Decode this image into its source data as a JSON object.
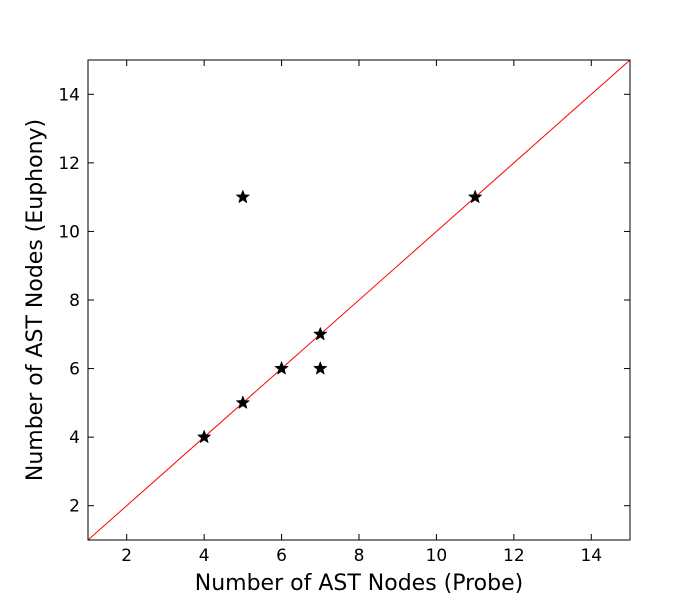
{
  "chart_data": {
    "type": "scatter",
    "xlabel": "Number of AST Nodes (Probe)",
    "ylabel": "Number of AST Nodes (Euphony)",
    "xlim": [
      1,
      15
    ],
    "ylim": [
      1,
      15
    ],
    "x_ticks": [
      2,
      4,
      6,
      8,
      10,
      12,
      14
    ],
    "y_ticks": [
      2,
      4,
      6,
      8,
      10,
      12,
      14
    ],
    "grid": false,
    "legend": "none",
    "marker": "star",
    "marker_color": "#000000",
    "reference_line": {
      "type": "y=x",
      "color": "#ff0000"
    },
    "points": [
      {
        "x": 4,
        "y": 4
      },
      {
        "x": 5,
        "y": 5
      },
      {
        "x": 5,
        "y": 11
      },
      {
        "x": 6,
        "y": 6
      },
      {
        "x": 7,
        "y": 7
      },
      {
        "x": 7,
        "y": 6
      },
      {
        "x": 11,
        "y": 11
      }
    ]
  }
}
